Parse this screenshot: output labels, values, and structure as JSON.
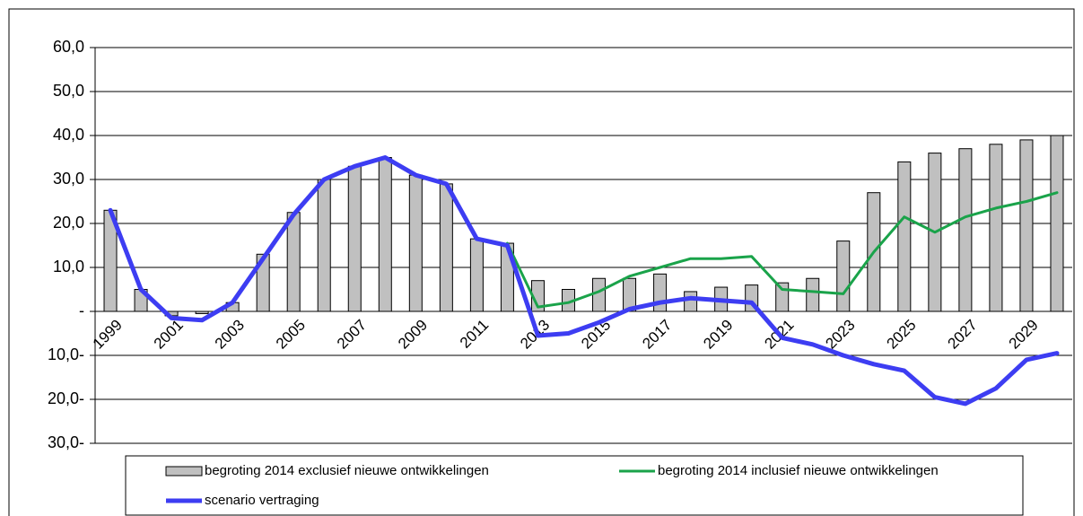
{
  "chart_data": {
    "type": "bar",
    "categories": [
      "1999",
      null,
      "2001",
      null,
      "2003",
      null,
      "2005",
      null,
      "2007",
      null,
      "2009",
      null,
      "2011",
      null,
      "2013",
      null,
      "2015",
      null,
      "2017",
      null,
      "2019",
      null,
      "2021",
      null,
      "2023",
      null,
      "2025",
      null,
      "2027",
      null,
      "2029",
      null
    ],
    "series": [
      {
        "name": "begroting 2014 exclusief nieuwe ontwikkelingen",
        "type": "bar",
        "color": "#c0c0c0",
        "values": [
          23,
          5,
          -1,
          -0.5,
          2,
          13,
          22.5,
          30,
          33,
          35,
          31,
          29,
          16.5,
          15.5,
          7,
          5,
          7.5,
          7.5,
          8.5,
          4.5,
          5.5,
          6,
          6.5,
          7.5,
          16,
          27,
          34,
          36,
          37,
          38,
          39,
          40
        ]
      },
      {
        "name": "begroting 2014 inclusief nieuwe ontwikkelingen",
        "type": "line",
        "color": "#1aa34a",
        "values": [
          null,
          null,
          null,
          null,
          null,
          null,
          null,
          null,
          null,
          null,
          null,
          null,
          null,
          15.5,
          1,
          2,
          4.5,
          8,
          10,
          12,
          12,
          12.5,
          5,
          4.5,
          4,
          13.5,
          21.5,
          18,
          21.5,
          23.5,
          25,
          27
        ]
      },
      {
        "name": "scenario vertraging",
        "type": "line",
        "color": "#3d3df2",
        "values": [
          23,
          5,
          -1.5,
          -2,
          2,
          12,
          22,
          30,
          33,
          35,
          31,
          29,
          16.5,
          15,
          -5.5,
          -5,
          -2.5,
          0.5,
          2,
          3,
          2.5,
          2,
          -6,
          -7.5,
          -10,
          -12,
          -13.5,
          -19.5,
          -21,
          -17.5,
          -11,
          -9.5
        ]
      }
    ],
    "ylim": [
      -30,
      60
    ],
    "yticks": [
      {
        "value": 60,
        "label": "60,0"
      },
      {
        "value": 50,
        "label": "50,0"
      },
      {
        "value": 40,
        "label": "40,0"
      },
      {
        "value": 30,
        "label": "30,0"
      },
      {
        "value": 20,
        "label": "20,0"
      },
      {
        "value": 10,
        "label": "10,0"
      },
      {
        "value": 0,
        "label": "-"
      },
      {
        "value": -10,
        "label": "10,0-"
      },
      {
        "value": -20,
        "label": "20,0-"
      },
      {
        "value": -30,
        "label": "30,0-"
      }
    ],
    "grid": true
  }
}
